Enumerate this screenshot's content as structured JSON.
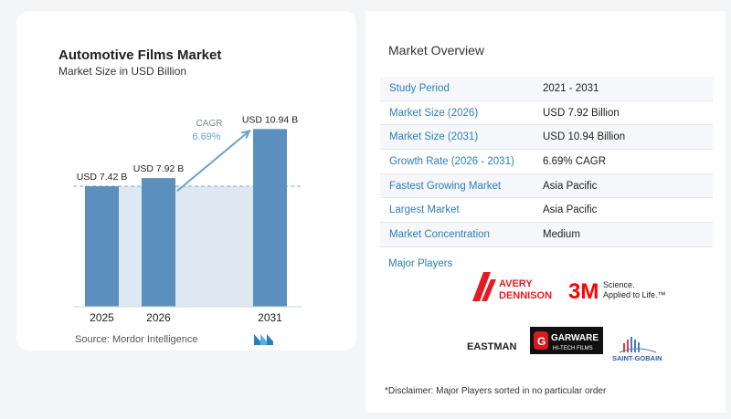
{
  "chart": {
    "title": "Automotive Films Market",
    "subtitle": "Market Size in USD Billion",
    "source": "Source: Mordor Intelligence",
    "cagr_label": "CAGR",
    "cagr_value": "6.69%"
  },
  "chart_data": {
    "type": "bar",
    "categories": [
      "2025",
      "2026",
      "2031"
    ],
    "values": [
      7.42,
      7.92,
      10.94
    ],
    "value_labels": [
      "USD 7.42 B",
      "USD 7.92 B",
      "USD 10.94 B"
    ],
    "title": "Automotive Films Market",
    "subtitle": "Market Size in USD Billion",
    "xlabel": "",
    "ylabel": "",
    "grid": false,
    "annotation": "CAGR 6.69%",
    "colors": {
      "bar": "#5b8fbd",
      "bar_light": "#8cb5d8",
      "shade": "#dde8f3",
      "arrow": "#6aa3cf",
      "reference_line": "#7aa9cf"
    }
  },
  "overview": {
    "title": "Market Overview",
    "rows": [
      {
        "label": "Study Period",
        "value": "2021 - 2031"
      },
      {
        "label": "Market Size (2026)",
        "value": "USD 7.92 Billion"
      },
      {
        "label": "Market Size (2031)",
        "value": "USD 10.94 Billion"
      },
      {
        "label": "Growth Rate (2026 - 2031)",
        "value": "6.69% CAGR"
      },
      {
        "label": "Fastest Growing Market",
        "value": "Asia Pacific"
      },
      {
        "label": "Largest Market",
        "value": "Asia Pacific"
      },
      {
        "label": "Market Concentration",
        "value": "Medium"
      }
    ]
  },
  "players": {
    "title": "Major Players",
    "logos": [
      {
        "name": "Avery Dennison",
        "line1": "AVERY",
        "line2": "DENNISON",
        "icon": "avery-dennison-logo",
        "color": "#e31b23"
      },
      {
        "name": "3M",
        "mark": "3M",
        "tagline1": "Science.",
        "tagline2": "Applied to Life.™",
        "icon": "3m-logo",
        "color": "#ff0000"
      },
      {
        "name": "Eastman",
        "text": "EASTMAN",
        "icon": "eastman-logo",
        "color": "#222222"
      },
      {
        "name": "Garware Hi-Tech Films",
        "line1": "GARWARE",
        "line2": "HI-TECH FILMS",
        "icon": "garware-logo",
        "color": "#d71920"
      },
      {
        "name": "Saint-Gobain",
        "text": "SAINT-GOBAIN",
        "icon": "saint-gobain-logo",
        "color": "#2c5fa8"
      }
    ]
  },
  "disclaimer": "*Disclaimer: Major Players sorted in no particular order"
}
